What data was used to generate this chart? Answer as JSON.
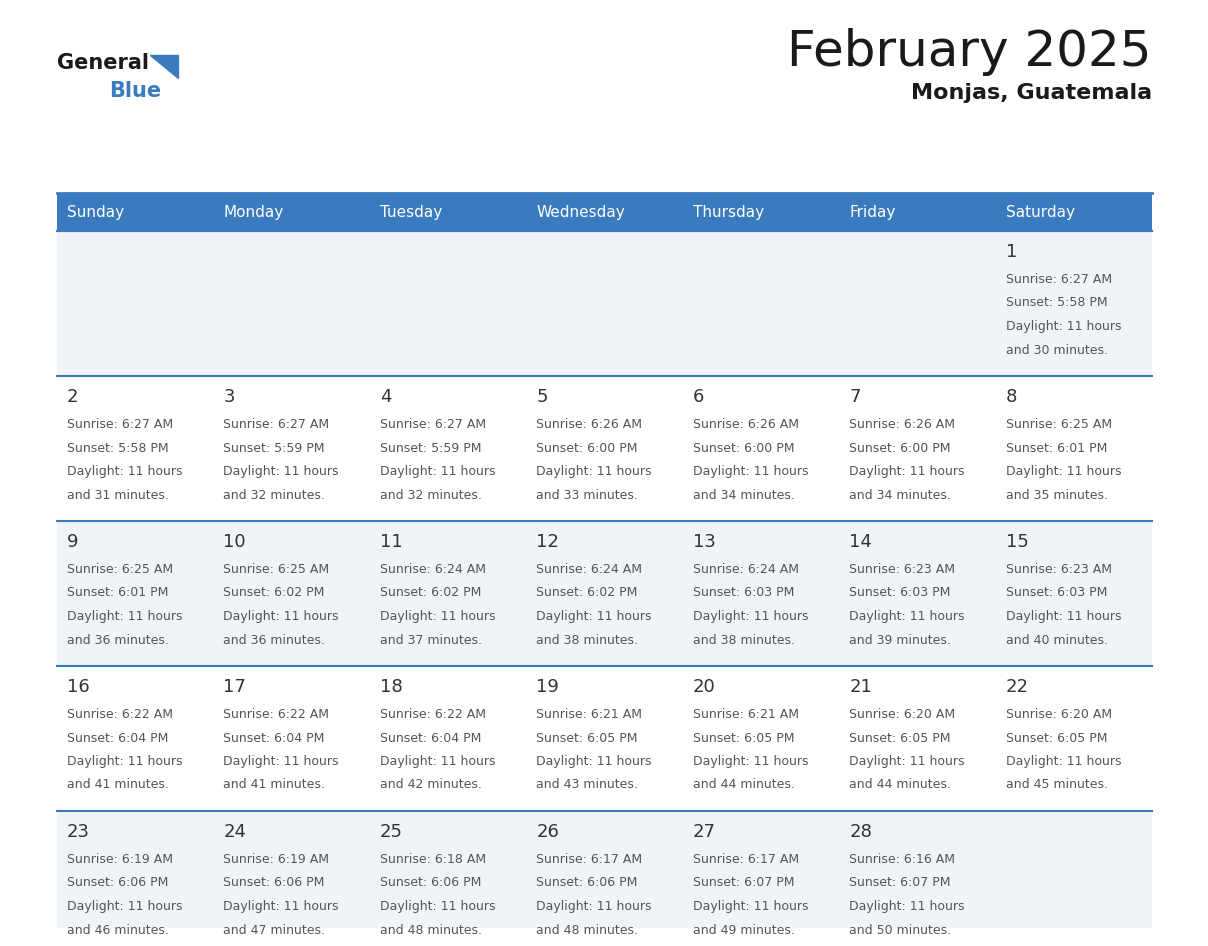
{
  "title": "February 2025",
  "subtitle": "Monjas, Guatemala",
  "days_of_week": [
    "Sunday",
    "Monday",
    "Tuesday",
    "Wednesday",
    "Thursday",
    "Friday",
    "Saturday"
  ],
  "header_bg_color": "#3a7bbf",
  "header_text_color": "#ffffff",
  "cell_bg_even": "#f0f4f8",
  "cell_bg_odd": "#ffffff",
  "day_num_color": "#333333",
  "text_color": "#555555",
  "grid_color": "#3a7bbf",
  "title_color": "#1a1a1a",
  "subtitle_color": "#1a1a1a",
  "logo_general_color": "#1a1a1a",
  "logo_blue_color": "#3a7bbf",
  "logo_triangle_color": "#3a7bbf",
  "calendar_data": [
    [
      {
        "day": null,
        "sunrise": null,
        "sunset": null,
        "daylight": null
      },
      {
        "day": null,
        "sunrise": null,
        "sunset": null,
        "daylight": null
      },
      {
        "day": null,
        "sunrise": null,
        "sunset": null,
        "daylight": null
      },
      {
        "day": null,
        "sunrise": null,
        "sunset": null,
        "daylight": null
      },
      {
        "day": null,
        "sunrise": null,
        "sunset": null,
        "daylight": null
      },
      {
        "day": null,
        "sunrise": null,
        "sunset": null,
        "daylight": null
      },
      {
        "day": 1,
        "sunrise": "6:27 AM",
        "sunset": "5:58 PM",
        "daylight": "11 hours and 30 minutes."
      }
    ],
    [
      {
        "day": 2,
        "sunrise": "6:27 AM",
        "sunset": "5:58 PM",
        "daylight": "11 hours and 31 minutes."
      },
      {
        "day": 3,
        "sunrise": "6:27 AM",
        "sunset": "5:59 PM",
        "daylight": "11 hours and 32 minutes."
      },
      {
        "day": 4,
        "sunrise": "6:27 AM",
        "sunset": "5:59 PM",
        "daylight": "11 hours and 32 minutes."
      },
      {
        "day": 5,
        "sunrise": "6:26 AM",
        "sunset": "6:00 PM",
        "daylight": "11 hours and 33 minutes."
      },
      {
        "day": 6,
        "sunrise": "6:26 AM",
        "sunset": "6:00 PM",
        "daylight": "11 hours and 34 minutes."
      },
      {
        "day": 7,
        "sunrise": "6:26 AM",
        "sunset": "6:00 PM",
        "daylight": "11 hours and 34 minutes."
      },
      {
        "day": 8,
        "sunrise": "6:25 AM",
        "sunset": "6:01 PM",
        "daylight": "11 hours and 35 minutes."
      }
    ],
    [
      {
        "day": 9,
        "sunrise": "6:25 AM",
        "sunset": "6:01 PM",
        "daylight": "11 hours and 36 minutes."
      },
      {
        "day": 10,
        "sunrise": "6:25 AM",
        "sunset": "6:02 PM",
        "daylight": "11 hours and 36 minutes."
      },
      {
        "day": 11,
        "sunrise": "6:24 AM",
        "sunset": "6:02 PM",
        "daylight": "11 hours and 37 minutes."
      },
      {
        "day": 12,
        "sunrise": "6:24 AM",
        "sunset": "6:02 PM",
        "daylight": "11 hours and 38 minutes."
      },
      {
        "day": 13,
        "sunrise": "6:24 AM",
        "sunset": "6:03 PM",
        "daylight": "11 hours and 38 minutes."
      },
      {
        "day": 14,
        "sunrise": "6:23 AM",
        "sunset": "6:03 PM",
        "daylight": "11 hours and 39 minutes."
      },
      {
        "day": 15,
        "sunrise": "6:23 AM",
        "sunset": "6:03 PM",
        "daylight": "11 hours and 40 minutes."
      }
    ],
    [
      {
        "day": 16,
        "sunrise": "6:22 AM",
        "sunset": "6:04 PM",
        "daylight": "11 hours and 41 minutes."
      },
      {
        "day": 17,
        "sunrise": "6:22 AM",
        "sunset": "6:04 PM",
        "daylight": "11 hours and 41 minutes."
      },
      {
        "day": 18,
        "sunrise": "6:22 AM",
        "sunset": "6:04 PM",
        "daylight": "11 hours and 42 minutes."
      },
      {
        "day": 19,
        "sunrise": "6:21 AM",
        "sunset": "6:05 PM",
        "daylight": "11 hours and 43 minutes."
      },
      {
        "day": 20,
        "sunrise": "6:21 AM",
        "sunset": "6:05 PM",
        "daylight": "11 hours and 44 minutes."
      },
      {
        "day": 21,
        "sunrise": "6:20 AM",
        "sunset": "6:05 PM",
        "daylight": "11 hours and 44 minutes."
      },
      {
        "day": 22,
        "sunrise": "6:20 AM",
        "sunset": "6:05 PM",
        "daylight": "11 hours and 45 minutes."
      }
    ],
    [
      {
        "day": 23,
        "sunrise": "6:19 AM",
        "sunset": "6:06 PM",
        "daylight": "11 hours and 46 minutes."
      },
      {
        "day": 24,
        "sunrise": "6:19 AM",
        "sunset": "6:06 PM",
        "daylight": "11 hours and 47 minutes."
      },
      {
        "day": 25,
        "sunrise": "6:18 AM",
        "sunset": "6:06 PM",
        "daylight": "11 hours and 48 minutes."
      },
      {
        "day": 26,
        "sunrise": "6:17 AM",
        "sunset": "6:06 PM",
        "daylight": "11 hours and 48 minutes."
      },
      {
        "day": 27,
        "sunrise": "6:17 AM",
        "sunset": "6:07 PM",
        "daylight": "11 hours and 49 minutes."
      },
      {
        "day": 28,
        "sunrise": "6:16 AM",
        "sunset": "6:07 PM",
        "daylight": "11 hours and 50 minutes."
      },
      {
        "day": null,
        "sunrise": null,
        "sunset": null,
        "daylight": null
      }
    ]
  ]
}
